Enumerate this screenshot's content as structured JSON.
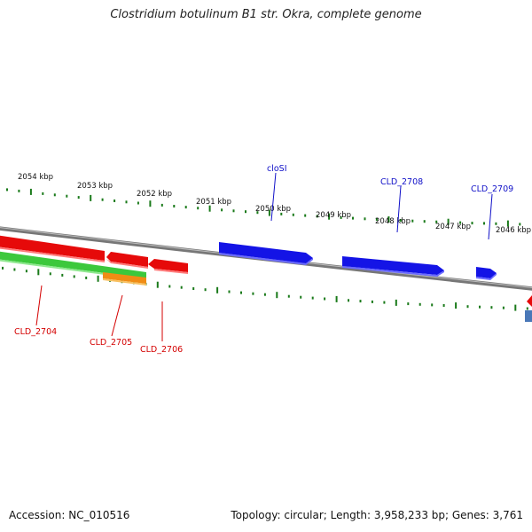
{
  "title": "Clostridium botulinum B1 str. Okra, complete genome",
  "footer": {
    "accession": "Accession: NC_010516",
    "summary": "Topology: circular; Length: 3,958,233 bp; Genes: 3,761"
  },
  "scale_labels": [
    "2054 kbp",
    "2053 kbp",
    "2052 kbp",
    "2051 kbp",
    "2050 kbp",
    "2049 kbp",
    "2048 kbp",
    "2047 kbp",
    "2046 kbp"
  ],
  "gene_labels": {
    "blue": [
      "cloSI",
      "CLD_2708",
      "CLD_2709"
    ],
    "red": [
      "CLD_2704",
      "CLD_2705",
      "CLD_2706"
    ]
  },
  "colors": {
    "backbone": "#888888",
    "forward_cds": "#1414e6",
    "reverse_cds": "#e60a0a",
    "reverse_gene": "#3cc83c",
    "orange_feature": "#f08c14",
    "tick": "#1a7a1a",
    "blue_label": "#1010c8",
    "red_label": "#d40000"
  }
}
